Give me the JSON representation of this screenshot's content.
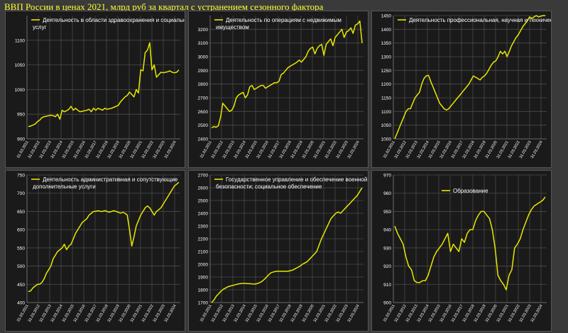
{
  "title": "ВВП России в ценах 2021, млрд руб за квартал с устранением сезонного фактора",
  "colors": {
    "line": "#e8e800",
    "grid": "#4a4a4a",
    "panel_bg": "#1a1a1a",
    "text": "#ffffff"
  },
  "chart_data": [
    {
      "type": "line",
      "title": "Деятельность в области здравоохранения и социальных услуг",
      "series": [
        {
          "name": "Деятельность в области здравоохранения и социальных услуг"
        }
      ],
      "legend": "top-left",
      "grid": true,
      "ylim": [
        900,
        1150
      ],
      "yticks": [
        "900",
        "950",
        "1000",
        "1050",
        "1100"
      ],
      "xticks": [
        "31.03.2011",
        "31.03.2012",
        "31.03.2013",
        "31.03.2014",
        "31.03.2015",
        "31.03.2016",
        "31.03.2017",
        "31.03.2018",
        "31.03.2019",
        "31.03.2020",
        "31.03.2021",
        "31.03.2022",
        "31.03.2023",
        "31.03.2024"
      ],
      "values": [
        925,
        926,
        928,
        930,
        935,
        938,
        943,
        945,
        946,
        947,
        948,
        947,
        945,
        950,
        940,
        958,
        955,
        957,
        960,
        966,
        958,
        962,
        958,
        955,
        956,
        957,
        958,
        960,
        955,
        962,
        958,
        962,
        960,
        958,
        962,
        960,
        961,
        962,
        964,
        966,
        968,
        975,
        980,
        985,
        988,
        995,
        990,
        985,
        1000,
        993,
        1040,
        1038,
        1075,
        1080,
        1095,
        1040,
        1050,
        1025,
        1030,
        1035,
        1034,
        1035,
        1036,
        1038,
        1035,
        1034,
        1035,
        1040
      ]
    },
    {
      "type": "line",
      "title": "Деятельность по операциям с недвижимым имуществом",
      "series": [
        {
          "name": "Деятельность по операциям с недвижимым имуществом"
        }
      ],
      "legend": "top-left",
      "grid": true,
      "ylim": [
        2400,
        3300
      ],
      "yticks": [
        "2400",
        "2500",
        "2600",
        "2700",
        "2800",
        "2900",
        "3000",
        "3100",
        "3200"
      ],
      "xticks": [
        "31.03.2011",
        "31.03.2012",
        "31.03.2013",
        "31.03.2014",
        "31.03.2015",
        "31.03.2016",
        "31.03.2017",
        "31.03.2018",
        "31.03.2019",
        "31.03.2020",
        "31.03.2021",
        "31.03.2022",
        "31.03.2023",
        "31.03.2024"
      ],
      "values": [
        2480,
        2490,
        2485,
        2495,
        2560,
        2660,
        2640,
        2620,
        2600,
        2610,
        2640,
        2700,
        2720,
        2730,
        2740,
        2700,
        2720,
        2780,
        2790,
        2760,
        2770,
        2780,
        2790,
        2790,
        2770,
        2780,
        2790,
        2800,
        2810,
        2810,
        2820,
        2870,
        2880,
        2900,
        2920,
        2930,
        2940,
        2950,
        2960,
        2975,
        2960,
        2980,
        3000,
        3040,
        3060,
        3070,
        3020,
        3060,
        3080,
        3090,
        3010,
        3090,
        3110,
        3130,
        3080,
        3140,
        3160,
        3180,
        3200,
        3140,
        3180,
        3190,
        3210,
        3170,
        3230,
        3240,
        3260,
        3100
      ]
    },
    {
      "type": "line",
      "title": "Деятельность профессиональная, научная и техническая",
      "series": [
        {
          "name": "Деятельность профессиональная, научная и техническая"
        }
      ],
      "legend": "top-left",
      "grid": true,
      "ylim": [
        1000,
        1450
      ],
      "yticks": [
        "1000",
        "1050",
        "1100",
        "1150",
        "1200",
        "1250",
        "1300",
        "1350",
        "1400",
        "1450"
      ],
      "xticks": [
        "31.03.2011",
        "31.03.2012",
        "31.03.2013",
        "31.03.2014",
        "31.03.2015",
        "31.03.2016",
        "31.03.2017",
        "31.03.2018",
        "31.03.2019",
        "31.03.2020",
        "31.03.2021",
        "31.03.2022",
        "31.03.2023",
        "31.03.2024"
      ],
      "values": [
        1000,
        1020,
        1040,
        1060,
        1080,
        1100,
        1110,
        1110,
        1130,
        1150,
        1160,
        1170,
        1200,
        1220,
        1230,
        1232,
        1210,
        1190,
        1170,
        1150,
        1130,
        1120,
        1110,
        1105,
        1110,
        1120,
        1130,
        1140,
        1150,
        1160,
        1170,
        1180,
        1190,
        1200,
        1215,
        1230,
        1225,
        1220,
        1215,
        1225,
        1230,
        1240,
        1255,
        1270,
        1280,
        1285,
        1300,
        1320,
        1310,
        1320,
        1300,
        1320,
        1340,
        1355,
        1370,
        1380,
        1395,
        1410,
        1420,
        1430,
        1445,
        1440,
        1445,
        1450,
        1445,
        1448,
        1450,
        1450
      ]
    },
    {
      "type": "line",
      "title": "Деятельность административная и сопутствующие дополнительные услуги",
      "series": [
        {
          "name": "Деятельность административная и сопутствующие дополнительные услуги"
        }
      ],
      "legend": "top-left",
      "grid": true,
      "ylim": [
        400,
        750
      ],
      "yticks": [
        "400",
        "450",
        "500",
        "550",
        "600",
        "650",
        "700",
        "750"
      ],
      "xticks": [
        "31.03.2011",
        "31.03.2012",
        "31.03.2013",
        "31.03.2014",
        "31.03.2015",
        "31.03.2016",
        "31.03.2017",
        "31.03.2018",
        "31.03.2019",
        "31.03.2020",
        "31.03.2021",
        "31.03.2022",
        "31.03.2023",
        "31.03.2024"
      ],
      "values": [
        430,
        432,
        440,
        445,
        450,
        450,
        455,
        465,
        480,
        490,
        500,
        520,
        530,
        540,
        545,
        550,
        560,
        545,
        555,
        560,
        575,
        590,
        600,
        610,
        620,
        625,
        630,
        640,
        645,
        650,
        650,
        652,
        650,
        650,
        652,
        650,
        648,
        650,
        652,
        650,
        648,
        645,
        648,
        645,
        640,
        600,
        555,
        580,
        610,
        625,
        640,
        650,
        660,
        665,
        660,
        650,
        640,
        650,
        655,
        660,
        670,
        680,
        690,
        700,
        710,
        720,
        725,
        730
      ]
    },
    {
      "type": "line",
      "title": "Государственное управление и обеспечение военной безопасности; социальное обеспечение",
      "series": [
        {
          "name": "Государственное управление и обеспечение военной безопасности; социальное обеспечение"
        }
      ],
      "legend": "top-left",
      "grid": true,
      "ylim": [
        1700,
        2700
      ],
      "yticks": [
        "1700",
        "1800",
        "1900",
        "2000",
        "2100",
        "2200",
        "2300",
        "2400",
        "2500",
        "2600",
        "2700"
      ],
      "xticks": [
        "31.03.2011",
        "31.03.2012",
        "31.03.2013",
        "31.03.2014",
        "31.03.2015",
        "31.03.2016",
        "31.03.2017",
        "31.03.2018",
        "31.03.2019",
        "31.03.2020",
        "31.03.2021",
        "31.03.2022",
        "31.03.2023",
        "31.03.2024"
      ],
      "values": [
        1700,
        1720,
        1750,
        1770,
        1790,
        1805,
        1815,
        1825,
        1830,
        1835,
        1840,
        1845,
        1848,
        1850,
        1850,
        1848,
        1848,
        1846,
        1845,
        1848,
        1855,
        1865,
        1880,
        1900,
        1920,
        1935,
        1940,
        1945,
        1945,
        1945,
        1945,
        1945,
        1945,
        1950,
        1955,
        1965,
        1975,
        1985,
        2000,
        2010,
        2020,
        2040,
        2060,
        2080,
        2100,
        2150,
        2200,
        2240,
        2280,
        2320,
        2360,
        2380,
        2400,
        2410,
        2400,
        2420,
        2440,
        2460,
        2480,
        2500,
        2520,
        2540,
        2570,
        2600
      ]
    },
    {
      "type": "line",
      "title": "Образование",
      "series": [
        {
          "name": "Образование"
        }
      ],
      "legend": "top-center",
      "grid": true,
      "ylim": [
        900,
        970
      ],
      "yticks": [
        "900",
        "910",
        "920",
        "930",
        "940",
        "950",
        "960",
        "970"
      ],
      "xticks": [
        "31.03.2011",
        "31.03.2012",
        "31.03.2013",
        "31.03.2014",
        "31.03.2015",
        "31.03.2016",
        "31.03.2017",
        "31.03.2018",
        "31.03.2019",
        "31.03.2020",
        "31.03.2021",
        "31.03.2022",
        "31.03.2023",
        "31.03.2024"
      ],
      "values": [
        942,
        938,
        935,
        932,
        925,
        920,
        918,
        912,
        911,
        911,
        912,
        912,
        915,
        920,
        925,
        928,
        930,
        932,
        935,
        938,
        928,
        932,
        930,
        928,
        935,
        933,
        938,
        940,
        940,
        945,
        948,
        950,
        950,
        948,
        946,
        940,
        930,
        915,
        912,
        910,
        907,
        915,
        918,
        930,
        932,
        935,
        940,
        944,
        948,
        951,
        953,
        954,
        955,
        956,
        958
      ]
    }
  ]
}
